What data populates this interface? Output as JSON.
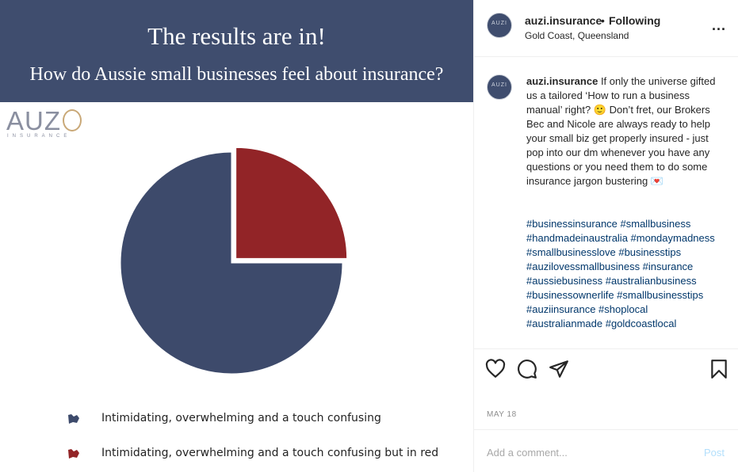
{
  "post_image": {
    "banner_title": "The results are in!",
    "banner_subtitle": "How do Aussie small businesses feel about insurance?",
    "banner_color": "#3f4d6e",
    "logo_text": "AUZ",
    "logo_subtext": "INSURANCE",
    "chart_data": {
      "type": "pie",
      "title": "",
      "slices": [
        {
          "label": "Intimidating, overwhelming and a touch confusing",
          "value": 75,
          "color": "#3d4a6b"
        },
        {
          "label": "Intimidating, overwhelming and a touch confusing but in red",
          "value": 25,
          "color": "#922427",
          "exploded": true
        }
      ],
      "legend_position": "bottom"
    }
  },
  "header": {
    "username": "auzi.insurance",
    "separator": "•",
    "follow_status": "Following",
    "location": "Gold Coast, Queensland",
    "more": "...",
    "avatar_text": "AUZI"
  },
  "caption": {
    "username": "auzi.insurance",
    "text": "If only the universe gifted us a tailored ‘How to run a business manual’ right? 🙂 Don’t fret, our Brokers Bec and Nicole are always ready to help your small biz get properly insured - just pop into our dm whenever you have any questions or you need them to do some insurance jargon bustering 💌",
    "hashtags": "#businessinsurance #smallbusiness #handmadeinaustralia #mondaymadness #smallbusinesslove #businesstips #auzilovessmallbusiness #insurance #aussiebusiness #australianbusiness #businessownerlife #smallbusinesstips #auziinsurance #shoplocal #australianmade #goldcoastlocal"
  },
  "actions": {
    "icons": [
      "heart-icon",
      "comment-icon",
      "share-icon",
      "bookmark-icon"
    ]
  },
  "date": "MAY 18",
  "comment": {
    "placeholder": "Add a comment...",
    "post_label": "Post"
  }
}
